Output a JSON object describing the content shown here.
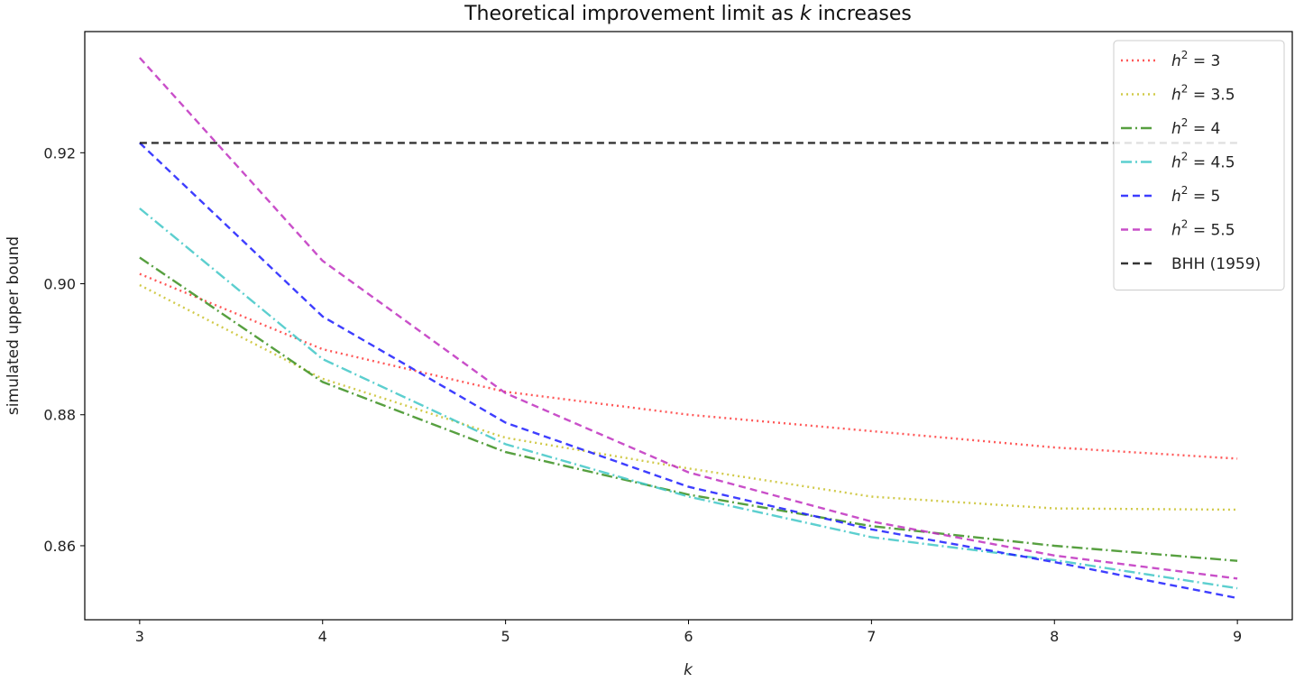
{
  "chart_data": {
    "type": "line",
    "title_prefix": "Theoretical improvement limit as ",
    "title_var": "k",
    "title_suffix": " increases",
    "xlabel": "k",
    "ylabel": "simulated upper bound",
    "x": [
      3,
      4,
      5,
      6,
      7,
      8,
      9
    ],
    "xticks": [
      "3",
      "4",
      "5",
      "6",
      "7",
      "8",
      "9"
    ],
    "xlim": [
      2.7,
      9.3
    ],
    "yticks": [
      "0.86",
      "0.88",
      "0.90",
      "0.92"
    ],
    "ytick_values": [
      0.86,
      0.88,
      0.9,
      0.92
    ],
    "ylim": [
      0.8487,
      0.9385
    ],
    "legend_position": "top-right",
    "grid": false,
    "series": [
      {
        "label_var": "h",
        "label_sup": "2",
        "label_rest": " = 3",
        "color": "#ff3b3b",
        "style": "dotted",
        "values": [
          0.9015,
          0.89,
          0.8835,
          0.88,
          0.8775,
          0.875,
          0.8733
        ]
      },
      {
        "label_var": "h",
        "label_sup": "2",
        "label_rest": " = 3.5",
        "color": "#c9c12a",
        "style": "dotted",
        "values": [
          0.8998,
          0.8855,
          0.8765,
          0.8718,
          0.8675,
          0.8657,
          0.8655
        ]
      },
      {
        "label_var": "h",
        "label_sup": "2",
        "label_rest": " = 4",
        "color": "#3a8f1f",
        "style": "dashdot",
        "values": [
          0.904,
          0.885,
          0.8743,
          0.8678,
          0.863,
          0.86,
          0.8577
        ]
      },
      {
        "label_var": "h",
        "label_sup": "2",
        "label_rest": " = 4.5",
        "color": "#3fc7c7",
        "style": "dashdot",
        "values": [
          0.9115,
          0.8885,
          0.8755,
          0.8675,
          0.8613,
          0.8578,
          0.8535
        ]
      },
      {
        "label_var": "h",
        "label_sup": "2",
        "label_rest": " = 5",
        "color": "#1c1cff",
        "style": "dashed",
        "values": [
          0.9215,
          0.895,
          0.8788,
          0.869,
          0.8625,
          0.8575,
          0.852
        ]
      },
      {
        "label_var": "h",
        "label_sup": "2",
        "label_rest": " = 5.5",
        "color": "#bf30bf",
        "style": "dashed",
        "values": [
          0.9345,
          0.9035,
          0.8833,
          0.8712,
          0.8637,
          0.8585,
          0.855
        ]
      },
      {
        "label_plain": "BHH (1959)",
        "color": "#111111",
        "style": "dashed",
        "values": [
          0.9215,
          0.9215,
          0.9215,
          0.9215,
          0.9215,
          0.9215,
          0.9215
        ]
      }
    ]
  }
}
